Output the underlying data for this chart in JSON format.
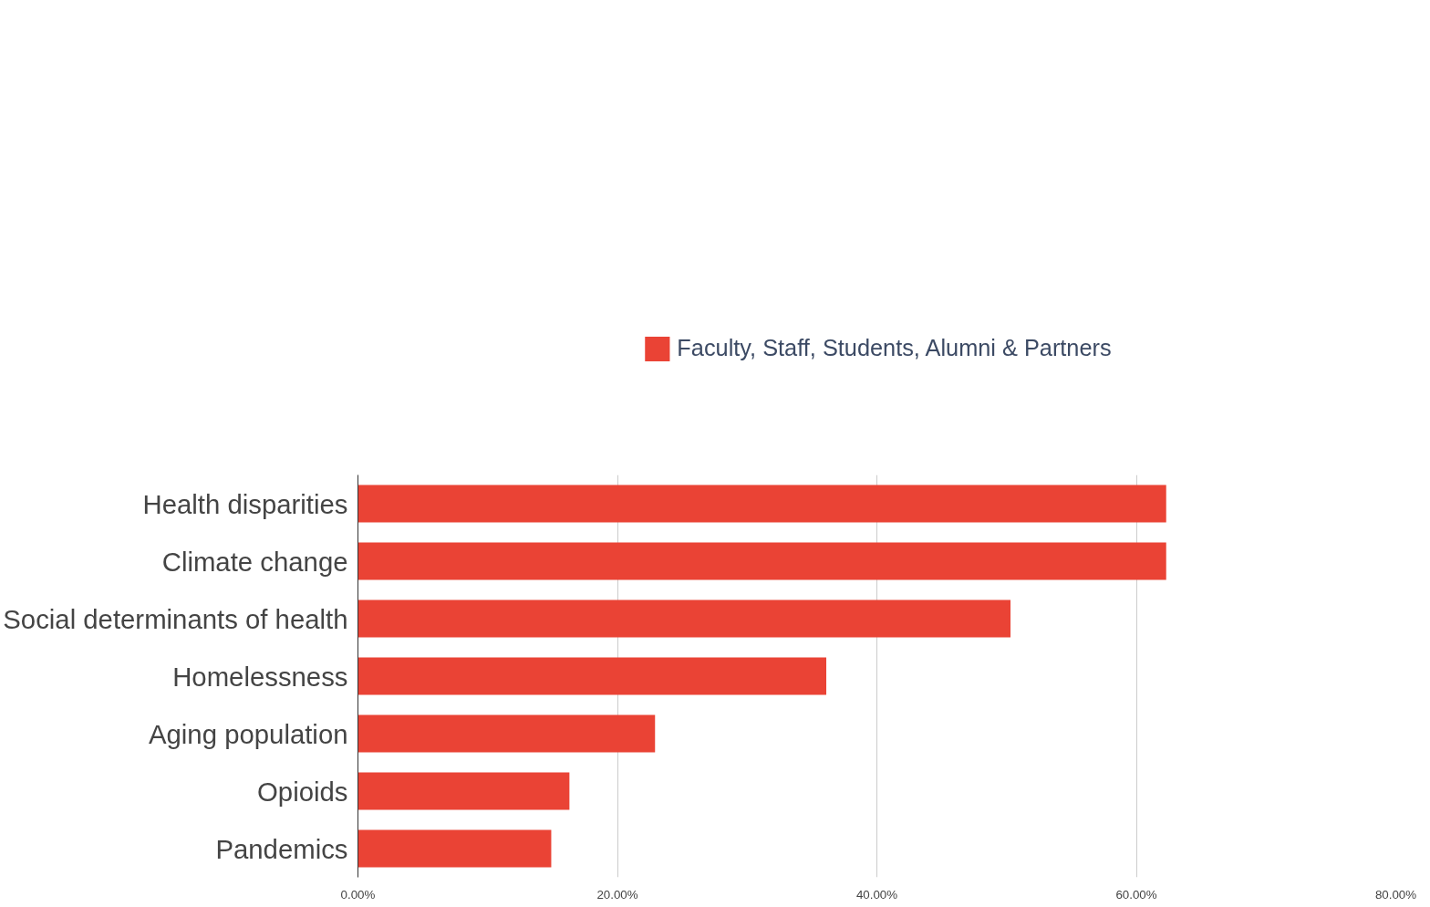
{
  "chart_data": {
    "type": "bar",
    "orientation": "horizontal",
    "categories": [
      "Health disparities",
      "Climate change",
      "Social determinants of health",
      "Homelessness",
      "Aging population",
      "Opioids",
      "Pandemics"
    ],
    "series": [
      {
        "name": "Faculty, Staff, Students, Alumni & Partners",
        "color": "#ea4335",
        "values": [
          62.3,
          62.3,
          50.3,
          36.1,
          22.9,
          16.3,
          14.9
        ]
      }
    ],
    "xlim": [
      0,
      80
    ],
    "xticks": [
      {
        "value": 0,
        "label": "0.00%"
      },
      {
        "value": 20,
        "label": "20.00%"
      },
      {
        "value": 40,
        "label": "40.00%"
      },
      {
        "value": 60,
        "label": "60.00%"
      },
      {
        "value": 80,
        "label": "80.00%"
      }
    ],
    "grid": "x",
    "legend": "top"
  }
}
